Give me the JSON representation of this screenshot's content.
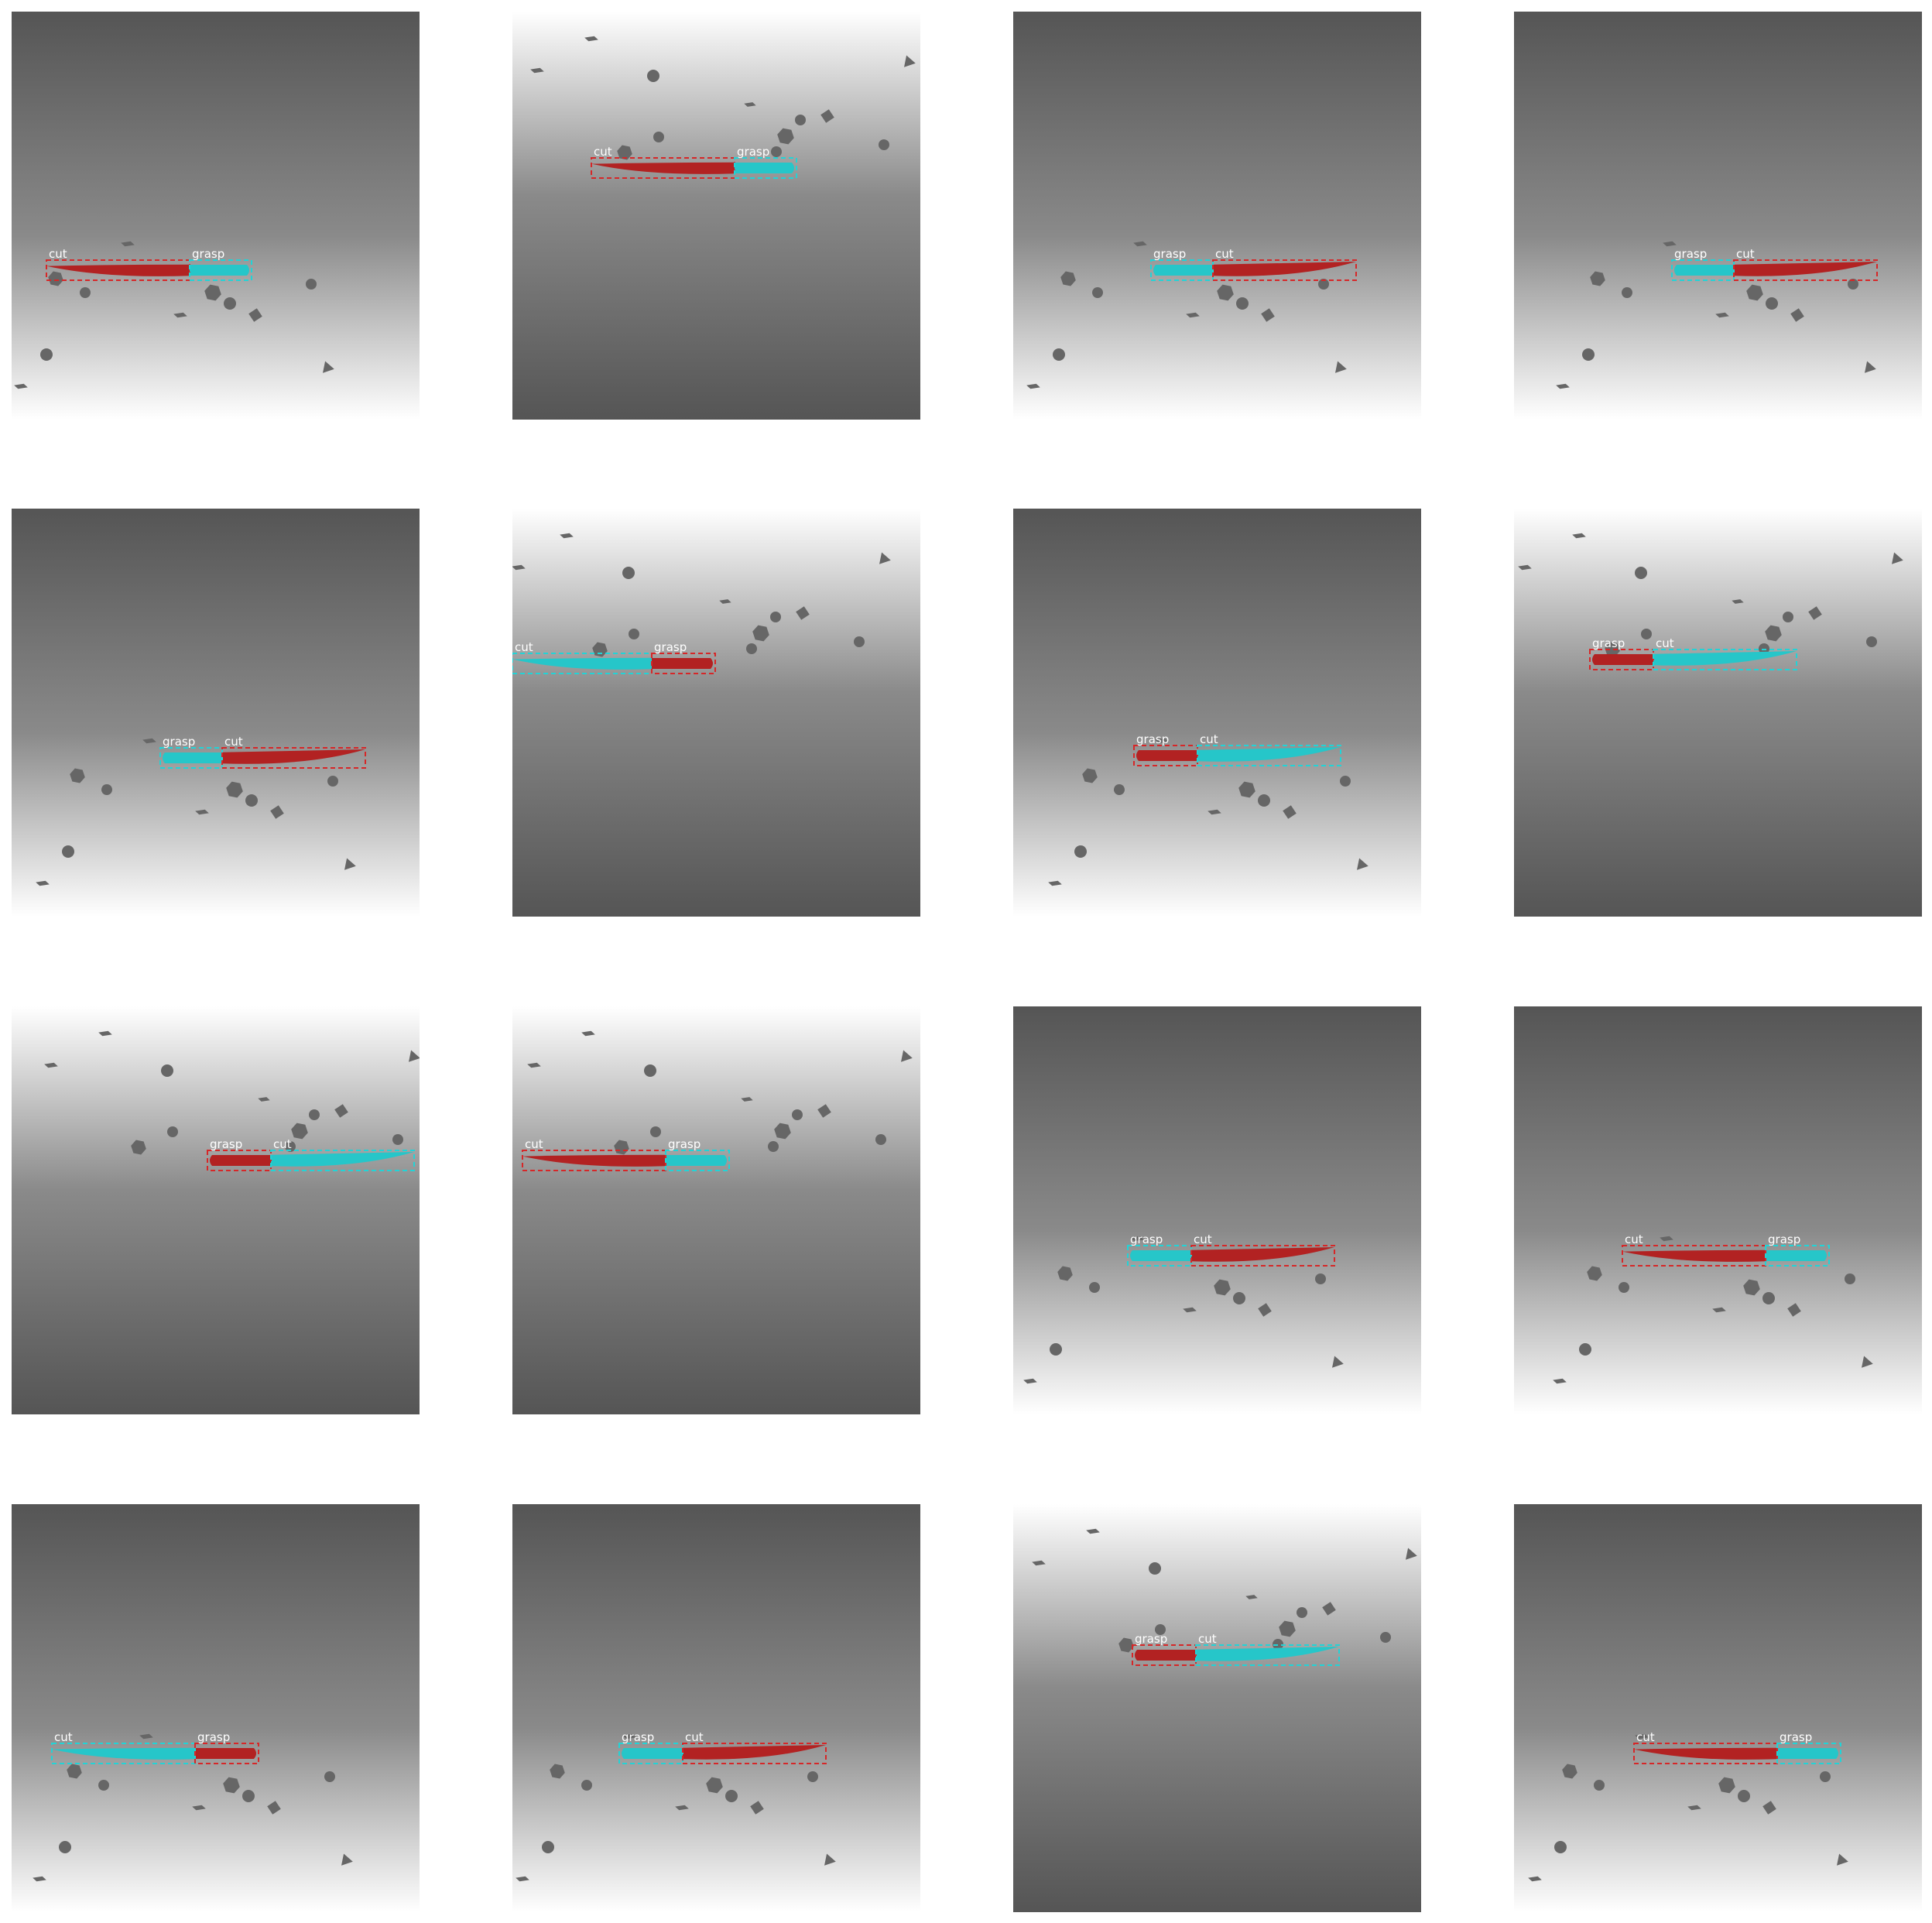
{
  "figure": {
    "description_colors": {
      "cut_mask": "#b22222",
      "grasp_mask": "#26c6c9",
      "box_red": "#d62728",
      "box_cyan": "#22d3d6",
      "background_dark": "#555555",
      "background_light": "#ffffff",
      "distractor": "#666666"
    },
    "panels": [
      {
        "id": 1,
        "bg": "light-bottom",
        "left_part": "cut",
        "right_part": "grasp",
        "left_color": "red",
        "right_color": "cyan",
        "labels": [
          "cut",
          "grasp"
        ]
      },
      {
        "id": 2,
        "bg": "light-top",
        "left_part": "cut",
        "right_part": "grasp",
        "left_color": "red",
        "right_color": "cyan",
        "labels": [
          "cut",
          "grasp"
        ]
      },
      {
        "id": 3,
        "bg": "light-bottom",
        "left_part": "grasp",
        "right_part": "cut",
        "left_color": "cyan",
        "right_color": "red",
        "labels": [
          "grasp",
          "cut"
        ]
      },
      {
        "id": 4,
        "bg": "light-bottom",
        "left_part": "grasp",
        "right_part": "cut",
        "left_color": "cyan",
        "right_color": "red",
        "labels": [
          "grasp",
          "cut"
        ]
      },
      {
        "id": 5,
        "bg": "light-bottom",
        "left_part": "grasp",
        "right_part": "cut",
        "left_color": "cyan",
        "right_color": "red",
        "labels": [
          "grasp",
          "cut"
        ]
      },
      {
        "id": 6,
        "bg": "light-top",
        "left_part": "cut",
        "right_part": "grasp",
        "left_color": "cyan",
        "right_color": "red",
        "labels": [
          "cut",
          "grasp"
        ]
      },
      {
        "id": 7,
        "bg": "light-bottom",
        "left_part": "grasp",
        "right_part": "cut",
        "left_color": "red",
        "right_color": "cyan",
        "labels": [
          "grasp",
          "cut"
        ]
      },
      {
        "id": 8,
        "bg": "light-top",
        "left_part": "grasp",
        "right_part": "cut",
        "left_color": "red",
        "right_color": "cyan",
        "labels": [
          "grasp",
          "cut"
        ]
      },
      {
        "id": 9,
        "bg": "light-top",
        "left_part": "grasp",
        "right_part": "cut",
        "left_color": "red",
        "right_color": "cyan",
        "labels": [
          "grasp",
          "cut"
        ]
      },
      {
        "id": 10,
        "bg": "light-top",
        "left_part": "cut",
        "right_part": "grasp",
        "left_color": "red",
        "right_color": "cyan",
        "labels": [
          "cut",
          "grasp"
        ]
      },
      {
        "id": 11,
        "bg": "light-bottom",
        "left_part": "grasp",
        "right_part": "cut",
        "left_color": "cyan",
        "right_color": "red",
        "labels": [
          "grasp",
          "cut"
        ]
      },
      {
        "id": 12,
        "bg": "light-bottom",
        "left_part": "cut",
        "right_part": "grasp",
        "left_color": "red",
        "right_color": "cyan",
        "labels": [
          "cut",
          "grasp"
        ]
      },
      {
        "id": 13,
        "bg": "light-bottom",
        "left_part": "cut",
        "right_part": "grasp",
        "left_color": "cyan",
        "right_color": "red",
        "labels": [
          "cut",
          "grasp"
        ]
      },
      {
        "id": 14,
        "bg": "light-bottom",
        "left_part": "grasp",
        "right_part": "cut",
        "left_color": "cyan",
        "right_color": "red",
        "labels": [
          "grasp",
          "cut"
        ]
      },
      {
        "id": 15,
        "bg": "light-top",
        "left_part": "grasp",
        "right_part": "cut",
        "left_color": "red",
        "right_color": "cyan",
        "labels": [
          "grasp",
          "cut"
        ]
      },
      {
        "id": 16,
        "bg": "light-bottom",
        "left_part": "cut",
        "right_part": "grasp",
        "left_color": "red",
        "right_color": "cyan",
        "labels": [
          "cut",
          "grasp"
        ]
      }
    ]
  }
}
